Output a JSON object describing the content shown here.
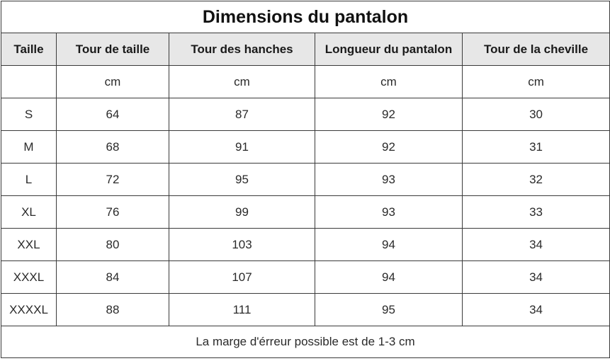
{
  "title": "Dimensions du pantalon",
  "headers": [
    "Taille",
    "Tour de taille",
    "Tour des hanches",
    "Longueur du pantalon",
    "Tour de la cheville"
  ],
  "units": [
    "",
    "cm",
    "cm",
    "cm",
    "cm"
  ],
  "rows": [
    [
      "S",
      "64",
      "87",
      "92",
      "30"
    ],
    [
      "M",
      "68",
      "91",
      "92",
      "31"
    ],
    [
      "L",
      "72",
      "95",
      "93",
      "32"
    ],
    [
      "XL",
      "76",
      "99",
      "93",
      "33"
    ],
    [
      "XXL",
      "80",
      "103",
      "94",
      "34"
    ],
    [
      "XXXL",
      "84",
      "107",
      "94",
      "34"
    ],
    [
      "XXXXL",
      "88",
      "111",
      "95",
      "34"
    ]
  ],
  "note": "La marge d'érreur possible est de 1-3 cm",
  "colors": {
    "header_background": "#e7e7e7",
    "border": "#3a3a3a"
  }
}
